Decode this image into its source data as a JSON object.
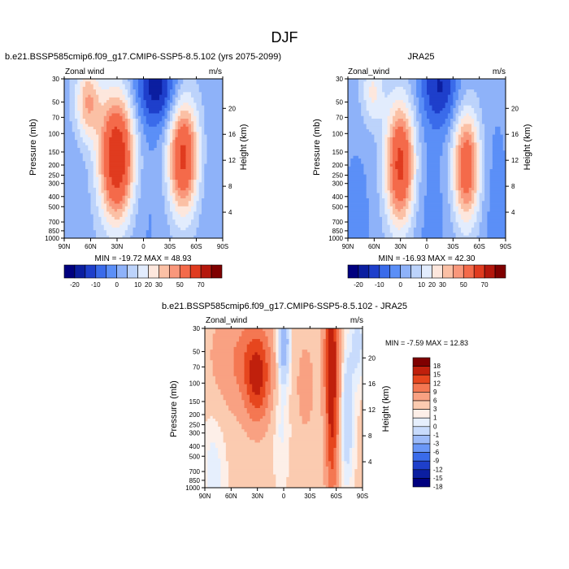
{
  "figure": {
    "title": "DJF",
    "colors": {
      "cb_main": [
        "#00007f",
        "#0b1ea0",
        "#1e3fcb",
        "#3a6bea",
        "#5b8ff7",
        "#8eb2f9",
        "#bcd3fb",
        "#e2ecfd",
        "#fde7dd",
        "#fbc0a5",
        "#f9977b",
        "#f46a4a",
        "#e03b1f",
        "#b4170c",
        "#7f0000"
      ],
      "cb_diff": [
        "#00007f",
        "#0b1ea0",
        "#1e3fcb",
        "#3a6bea",
        "#6a97f7",
        "#9dbbf9",
        "#c8dbfc",
        "#e6effd",
        "#fdefe8",
        "#fbcbb0",
        "#f9a182",
        "#f47752",
        "#e6461e",
        "#c0200c",
        "#7f0000"
      ]
    }
  },
  "chart_data": [
    {
      "type": "heatmap",
      "id": "model",
      "title": "b.e21.BSSP585cmip6.f09_g17.CMIP6-SSP5-8.5.102 (yrs 2075-2099)",
      "left_label": "Zonal wind",
      "units": "m/s",
      "ylabel": "Pressure (mb)",
      "ylabel_right": "Height (km)",
      "x_ticks": [
        "90N",
        "60N",
        "30N",
        "0",
        "30S",
        "60S",
        "90S"
      ],
      "x_range": [
        90,
        -90
      ],
      "y_ticks": [
        30,
        50,
        70,
        100,
        150,
        200,
        250,
        300,
        400,
        500,
        700,
        850,
        1000
      ],
      "y_range": [
        30,
        1000
      ],
      "y_scale": "log",
      "height_ticks": [
        20,
        16,
        12,
        8,
        4
      ],
      "stats": "MIN = -19.72  MAX =  48.93",
      "colorbar_labels": [
        "-20",
        "-10",
        "0",
        "10",
        "20",
        "30",
        "50",
        "70"
      ],
      "background_value": 3,
      "features": [
        {
          "lat": 30,
          "p": 170,
          "value": 48,
          "sigma_lat": 14,
          "sigma_logp": 0.42
        },
        {
          "lat": -45,
          "p": 165,
          "value": 40,
          "sigma_lat": 12,
          "sigma_logp": 0.38
        },
        {
          "lat": 63,
          "p": 50,
          "value": 22,
          "sigma_lat": 10,
          "sigma_logp": 0.25
        },
        {
          "lat": -15,
          "p": 35,
          "value": -20,
          "sigma_lat": 18,
          "sigma_logp": 0.28
        },
        {
          "lat": 0,
          "p": 450,
          "value": -4,
          "sigma_lat": 20,
          "sigma_logp": 0.7
        },
        {
          "lat": 80,
          "p": 600,
          "value": -3,
          "sigma_lat": 12,
          "sigma_logp": 0.5
        },
        {
          "lat": -78,
          "p": 500,
          "value": -3,
          "sigma_lat": 12,
          "sigma_logp": 0.7
        }
      ]
    },
    {
      "type": "heatmap",
      "id": "obs",
      "title": "JRA25",
      "left_label": "Zonal_wind",
      "units": "m/s",
      "ylabel": "Pressure (mb)",
      "ylabel_right": "Height (km)",
      "x_ticks": [
        "90N",
        "60N",
        "30N",
        "0",
        "30S",
        "60S",
        "90S"
      ],
      "x_range": [
        90,
        -90
      ],
      "y_ticks": [
        30,
        50,
        70,
        100,
        150,
        200,
        250,
        300,
        400,
        500,
        700,
        850,
        1000
      ],
      "y_range": [
        30,
        1000
      ],
      "y_scale": "log",
      "height_ticks": [
        20,
        16,
        12,
        8,
        4
      ],
      "stats": "MIN = -16.93  MAX = 42.30",
      "colorbar_labels": [
        "-20",
        "-10",
        "0",
        "10",
        "20",
        "30",
        "50",
        "70"
      ],
      "background_value": 2,
      "features": [
        {
          "lat": 30,
          "p": 200,
          "value": 42,
          "sigma_lat": 12,
          "sigma_logp": 0.42
        },
        {
          "lat": -45,
          "p": 210,
          "value": 36,
          "sigma_lat": 11,
          "sigma_logp": 0.38
        },
        {
          "lat": 62,
          "p": 40,
          "value": 14,
          "sigma_lat": 9,
          "sigma_logp": 0.22
        },
        {
          "lat": -15,
          "p": 35,
          "value": -17,
          "sigma_lat": 16,
          "sigma_logp": 0.28
        },
        {
          "lat": 0,
          "p": 450,
          "value": -4,
          "sigma_lat": 22,
          "sigma_logp": 0.6
        },
        {
          "lat": 80,
          "p": 600,
          "value": -4,
          "sigma_lat": 12,
          "sigma_logp": 0.5
        },
        {
          "lat": -78,
          "p": 500,
          "value": -4,
          "sigma_lat": 12,
          "sigma_logp": 0.7
        }
      ]
    },
    {
      "type": "heatmap",
      "id": "diff",
      "title": "b.e21.BSSP585cmip6.f09_g17.CMIP6-SSP5-8.5.102 - JRA25",
      "left_label": "Zonal_wind",
      "units": "m/s",
      "ylabel": "Pressure (mb)",
      "ylabel_right": "Height (km)",
      "x_ticks": [
        "90N",
        "60N",
        "30N",
        "0",
        "30S",
        "60S",
        "90S"
      ],
      "x_range": [
        90,
        -90
      ],
      "y_ticks": [
        30,
        50,
        70,
        100,
        150,
        200,
        250,
        300,
        400,
        500,
        700,
        850,
        1000
      ],
      "y_range": [
        30,
        1000
      ],
      "y_scale": "log",
      "height_ticks": [
        20,
        16,
        12,
        8,
        4
      ],
      "stats": "MIN =  -7.59  MAX =  12.83",
      "colorbar_labels": [
        "18",
        "15",
        "12",
        "9",
        "6",
        "3",
        "1",
        "0",
        "-1",
        "-3",
        "-6",
        "-9",
        "-12",
        "-15",
        "-18"
      ],
      "background_value": 1.5,
      "features": [
        {
          "lat": 30,
          "p": 90,
          "value": 9,
          "sigma_lat": 10,
          "sigma_logp": 0.3
        },
        {
          "lat": 45,
          "p": 60,
          "value": 5,
          "sigma_lat": 25,
          "sigma_logp": 0.35
        },
        {
          "lat": -55,
          "p": 50,
          "value": 12,
          "sigma_lat": 6,
          "sigma_logp": 0.6
        },
        {
          "lat": -55,
          "p": 400,
          "value": 6,
          "sigma_lat": 5,
          "sigma_logp": 0.5
        },
        {
          "lat": -25,
          "p": 110,
          "value": 4,
          "sigma_lat": 6,
          "sigma_logp": 0.25
        },
        {
          "lat": 0,
          "p": 40,
          "value": -7,
          "sigma_lat": 5,
          "sigma_logp": 0.25
        },
        {
          "lat": 3,
          "p": 180,
          "value": -2,
          "sigma_lat": 7,
          "sigma_logp": 0.5
        },
        {
          "lat": -72,
          "p": 200,
          "value": -4,
          "sigma_lat": 6,
          "sigma_logp": 0.5
        },
        {
          "lat": 80,
          "p": 700,
          "value": -2,
          "sigma_lat": 10,
          "sigma_logp": 0.45
        },
        {
          "lat": -85,
          "p": 40,
          "value": -3,
          "sigma_lat": 6,
          "sigma_logp": 0.3
        }
      ]
    }
  ]
}
